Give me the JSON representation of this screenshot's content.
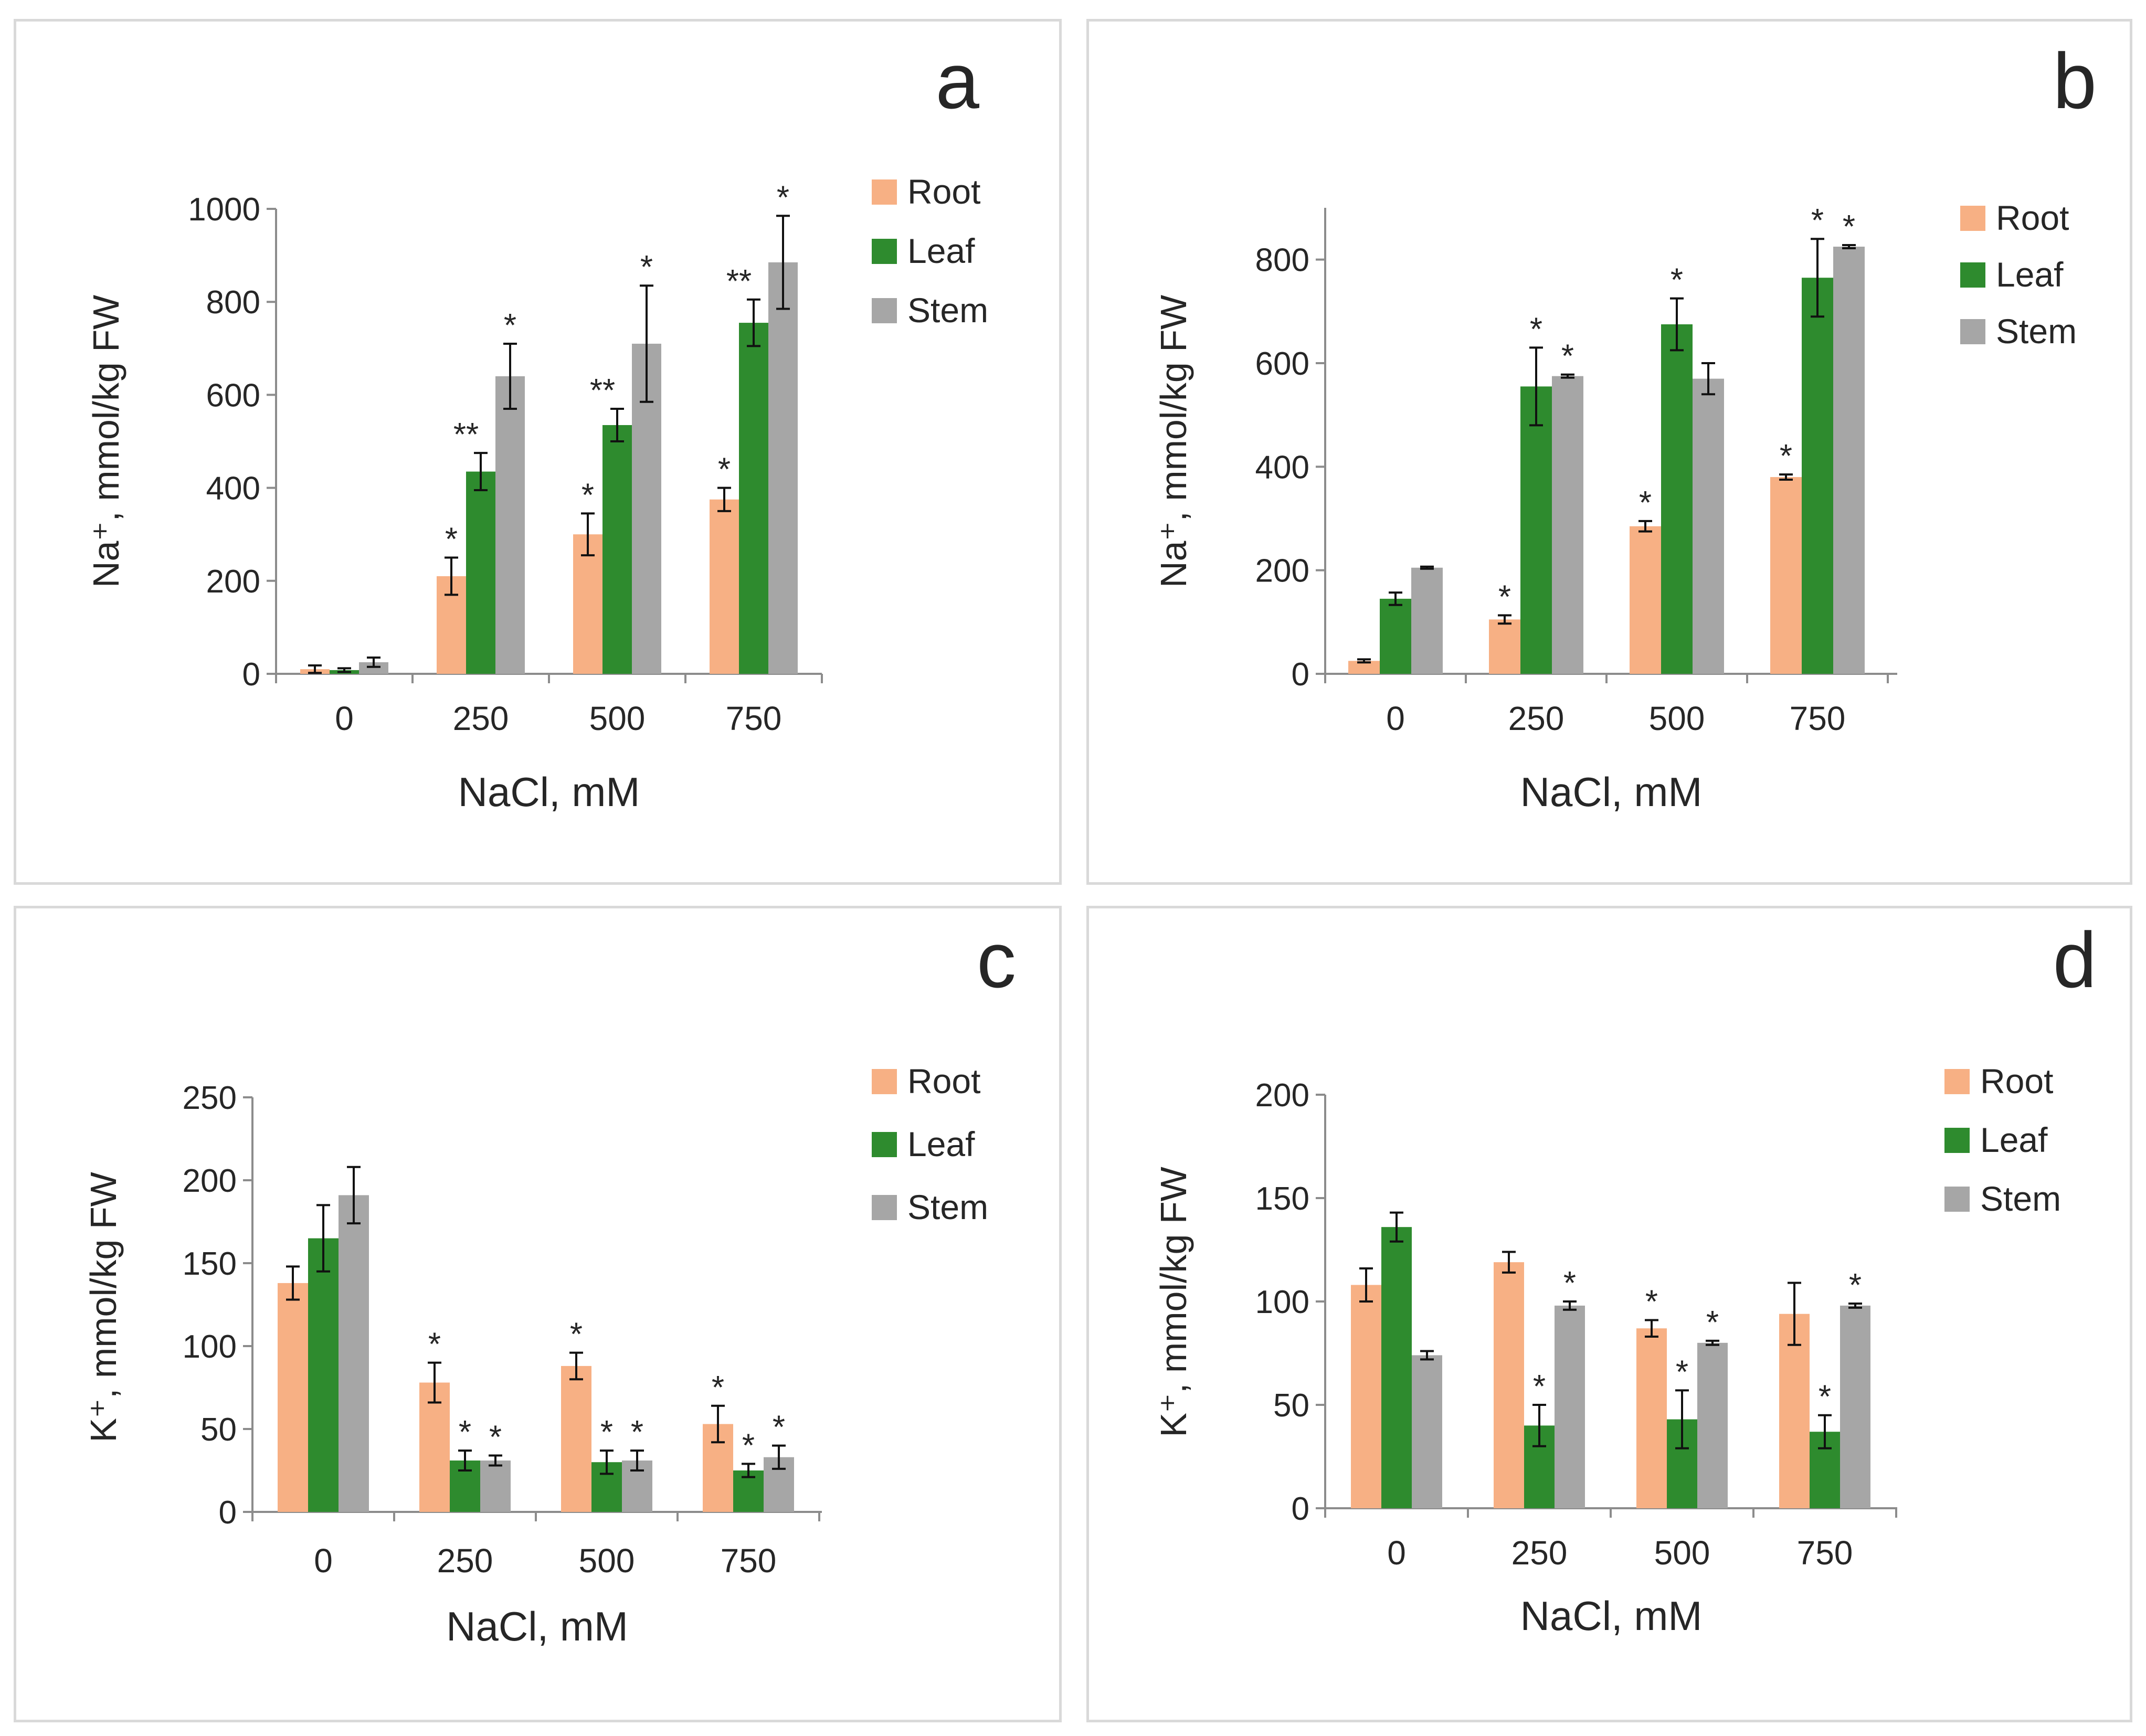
{
  "colors": {
    "root": "#f7b084",
    "leaf": "#2e8b2e",
    "stem": "#a6a6a6",
    "axis": "#8c8c8c",
    "text": "#262626",
    "border": "#d9d9d9"
  },
  "chart_data": [
    {
      "panel": "a",
      "type": "bar",
      "title": "a",
      "xlabel": "NaCl, mM",
      "ylabel": "Na⁺, mmol/kg FW",
      "ylim": [
        0,
        1000
      ],
      "yticks": [
        "0",
        "200",
        "400",
        "600",
        "800",
        "1000"
      ],
      "categories": [
        "0",
        "250",
        "500",
        "750"
      ],
      "legend_position": "top-right",
      "series": [
        {
          "name": "Root",
          "values": [
            10,
            210,
            300,
            375
          ],
          "errors": [
            8,
            40,
            45,
            25
          ],
          "marks": [
            "",
            "*",
            "*",
            "*"
          ]
        },
        {
          "name": "Leaf",
          "values": [
            8,
            435,
            535,
            755
          ],
          "errors": [
            4,
            40,
            35,
            50
          ],
          "marks": [
            "",
            "**",
            "**",
            "**"
          ]
        },
        {
          "name": "Stem",
          "values": [
            25,
            640,
            710,
            885
          ],
          "errors": [
            10,
            70,
            125,
            100
          ],
          "marks": [
            "",
            "*",
            "*",
            "*"
          ]
        }
      ]
    },
    {
      "panel": "b",
      "type": "bar",
      "title": "b",
      "xlabel": "NaCl, mM",
      "ylabel": "Na⁺, mmol/kg FW",
      "ylim": [
        0,
        900
      ],
      "yticks": [
        "0",
        "200",
        "400",
        "600",
        "800"
      ],
      "categories": [
        "0",
        "250",
        "500",
        "750"
      ],
      "legend_position": "top-right",
      "series": [
        {
          "name": "Root",
          "values": [
            25,
            105,
            285,
            380
          ],
          "errors": [
            3,
            8,
            10,
            5
          ],
          "marks": [
            "",
            "*",
            "*",
            "*"
          ]
        },
        {
          "name": "Leaf",
          "values": [
            145,
            555,
            675,
            765
          ],
          "errors": [
            12,
            75,
            50,
            75
          ],
          "marks": [
            "",
            "*",
            "*",
            "*"
          ]
        },
        {
          "name": "Stem",
          "values": [
            205,
            575,
            570,
            825
          ],
          "errors": [
            2,
            3,
            30,
            3
          ],
          "marks": [
            "",
            "*",
            "",
            "*"
          ]
        }
      ]
    },
    {
      "panel": "c",
      "type": "bar",
      "title": "c",
      "xlabel": "NaCl, mM",
      "ylabel": "K⁺, mmol/kg FW",
      "ylim": [
        0,
        250
      ],
      "yticks": [
        "0",
        "50",
        "100",
        "150",
        "200",
        "250"
      ],
      "categories": [
        "0",
        "250",
        "500",
        "750"
      ],
      "legend_position": "top-right",
      "series": [
        {
          "name": "Root",
          "values": [
            138,
            78,
            88,
            53
          ],
          "errors": [
            10,
            12,
            8,
            11
          ],
          "marks": [
            "",
            "*",
            "*",
            "*"
          ]
        },
        {
          "name": "Leaf",
          "values": [
            165,
            31,
            30,
            25
          ],
          "errors": [
            20,
            6,
            7,
            4
          ],
          "marks": [
            "",
            "*",
            "*",
            "*"
          ]
        },
        {
          "name": "Stem",
          "values": [
            191,
            31,
            31,
            33
          ],
          "errors": [
            17,
            3,
            6,
            7
          ],
          "marks": [
            "",
            "*",
            "*",
            "*"
          ]
        }
      ]
    },
    {
      "panel": "d",
      "type": "bar",
      "title": "d",
      "xlabel": "NaCl, mM",
      "ylabel": "K⁺, mmol/kg FW",
      "ylim": [
        0,
        200
      ],
      "yticks": [
        "0",
        "50",
        "100",
        "150",
        "200"
      ],
      "categories": [
        "0",
        "250",
        "500",
        "750"
      ],
      "legend_position": "top-right",
      "series": [
        {
          "name": "Root",
          "values": [
            108,
            119,
            87,
            94
          ],
          "errors": [
            8,
            5,
            4,
            15
          ],
          "marks": [
            "",
            "",
            "*",
            ""
          ]
        },
        {
          "name": "Leaf",
          "values": [
            136,
            40,
            43,
            37
          ],
          "errors": [
            7,
            10,
            14,
            8
          ],
          "marks": [
            "",
            "*",
            "*",
            "*"
          ]
        },
        {
          "name": "Stem",
          "values": [
            74,
            98,
            80,
            98
          ],
          "errors": [
            2,
            2,
            1,
            1
          ],
          "marks": [
            "",
            "*",
            "*",
            "*"
          ]
        }
      ]
    }
  ]
}
